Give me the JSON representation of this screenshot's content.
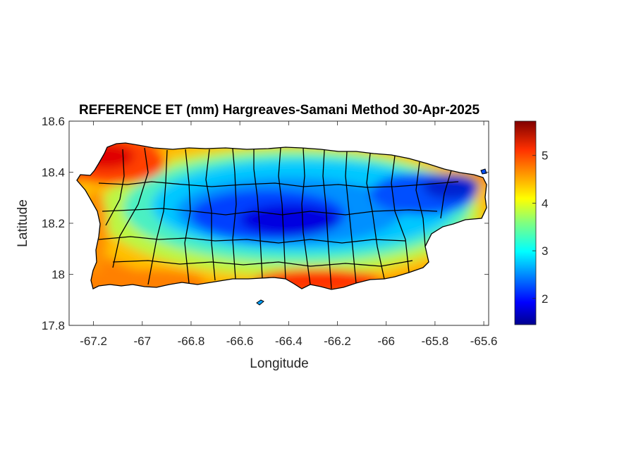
{
  "title": "REFERENCE ET (mm) Hargreaves-Samani Method  30-Apr-2025",
  "xlabel": "Longitude",
  "ylabel": "Latitude",
  "xlim": [
    -67.3,
    -65.58
  ],
  "ylim": [
    17.8,
    18.6
  ],
  "xticks": [
    "-67.2",
    "-67",
    "-66.8",
    "-66.6",
    "-66.4",
    "-66.2",
    "-66",
    "-65.8",
    "-65.6"
  ],
  "xtick_values": [
    -67.2,
    -67.0,
    -66.8,
    -66.6,
    -66.4,
    -66.2,
    -66.0,
    -65.8,
    -65.6
  ],
  "yticks": [
    "18.6",
    "18.4",
    "18.2",
    "18",
    "17.8"
  ],
  "ytick_values": [
    18.6,
    18.4,
    18.2,
    18.0,
    17.8
  ],
  "colorbar": {
    "colormap": "jet",
    "range": [
      1.45,
      5.72
    ],
    "ticks": [
      "5",
      "4",
      "3",
      "2"
    ],
    "tick_values": [
      5,
      4,
      3,
      2
    ]
  },
  "colors": {
    "jet": [
      "#00008f",
      "#0000ff",
      "#0080ff",
      "#00ffff",
      "#80ff80",
      "#ffff00",
      "#ff8000",
      "#ff0000",
      "#800000"
    ],
    "boundary": "#000000"
  }
}
